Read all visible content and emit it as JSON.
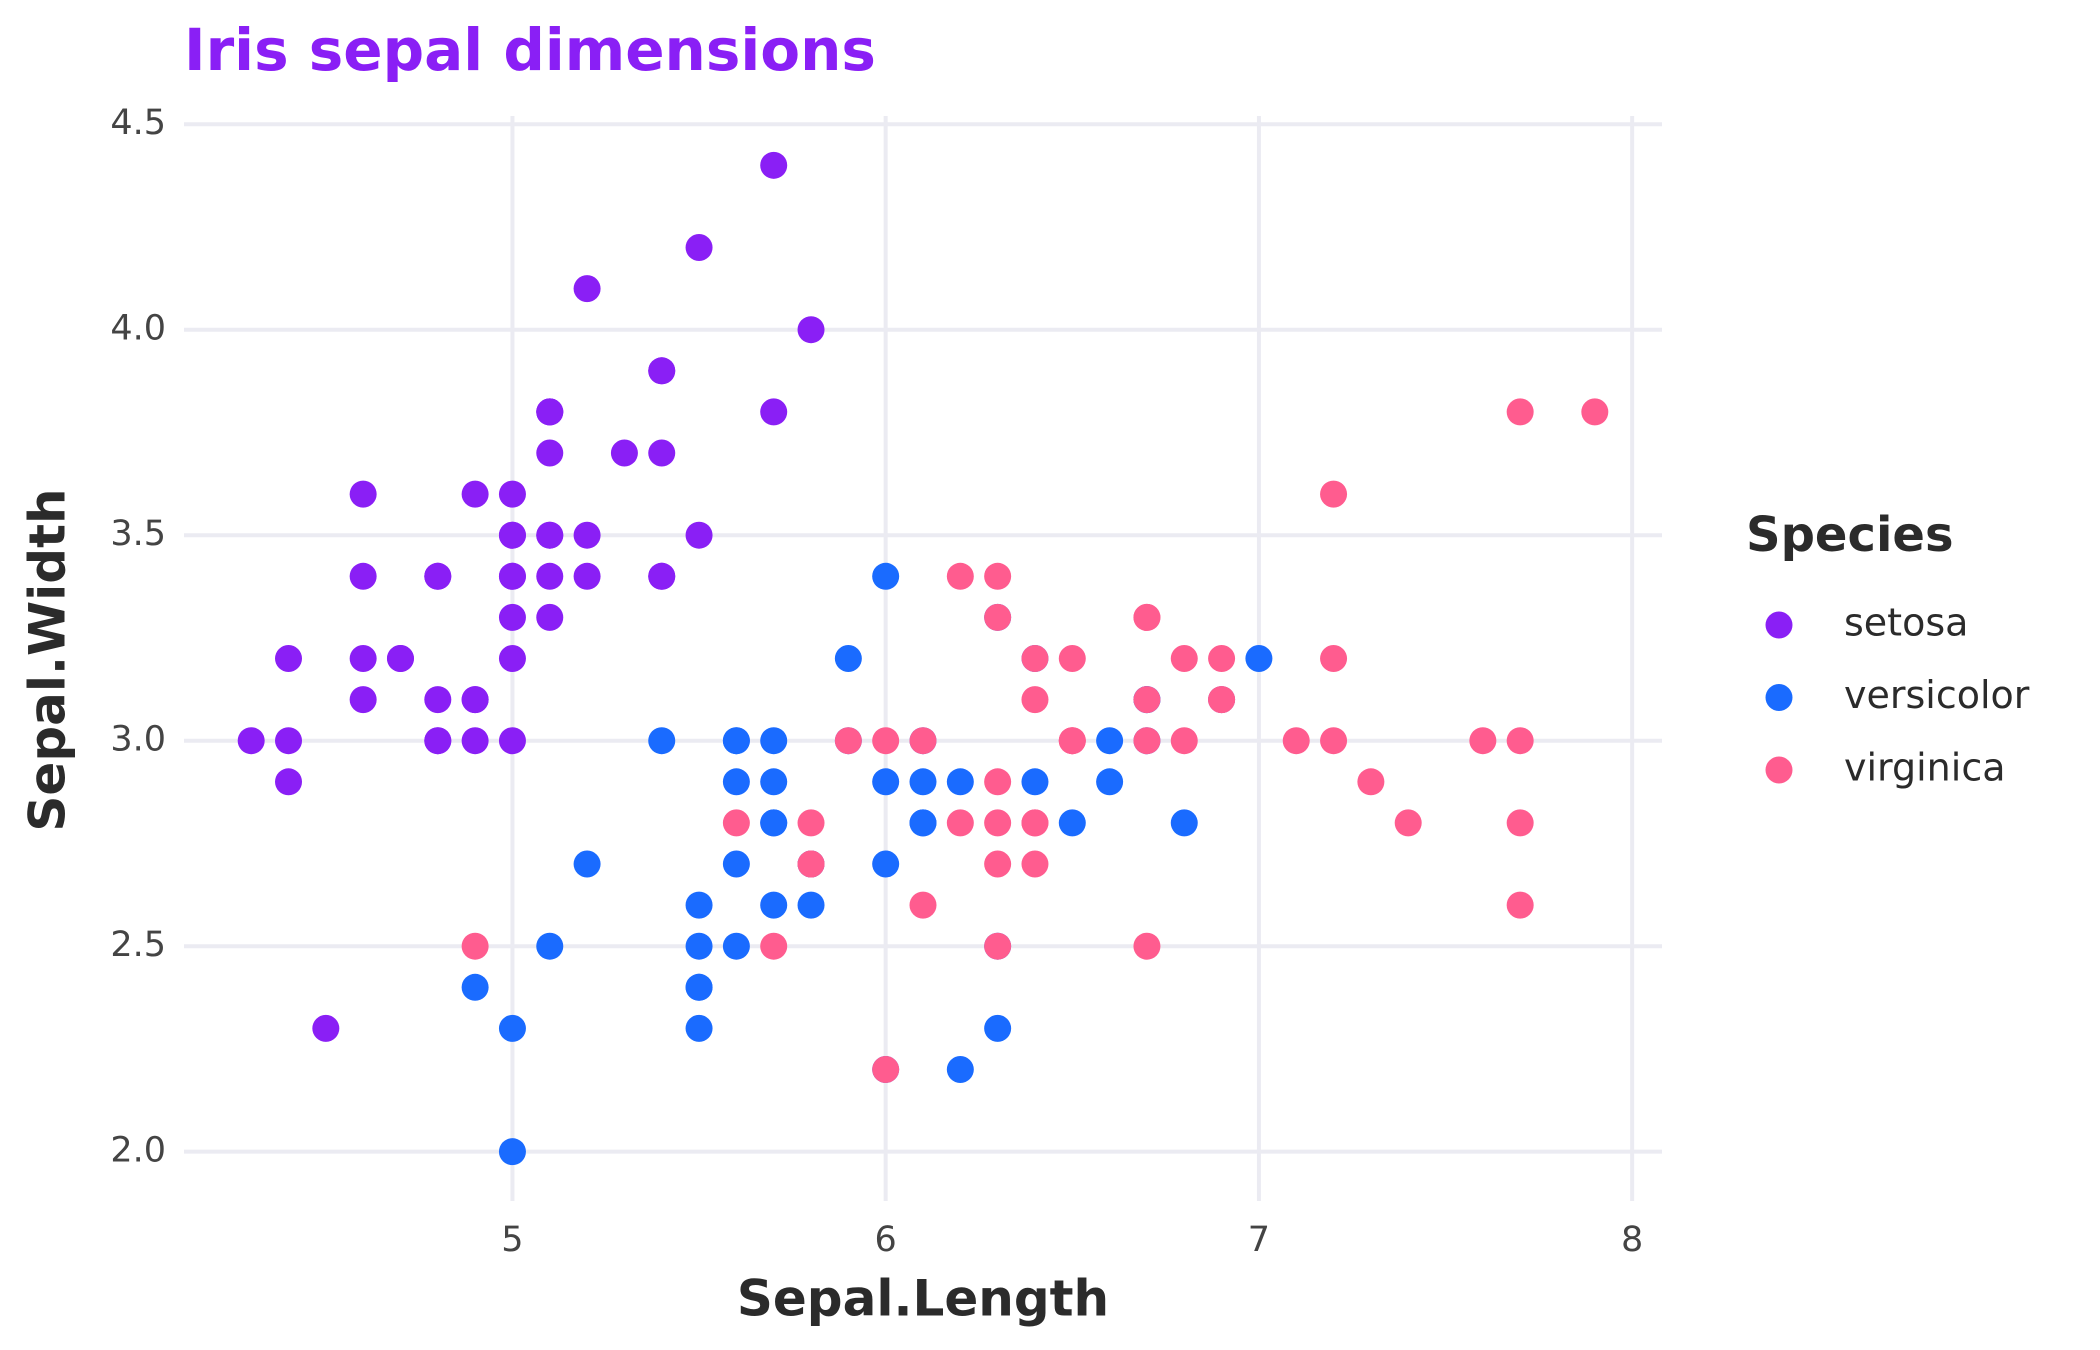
{
  "chart_data": {
    "type": "scatter",
    "title": "Iris sepal dimensions",
    "title_color": "#8a1ff5",
    "x_label": "Sepal.Length",
    "y_label": "Sepal.Width",
    "xlim": [
      4.12,
      8.08
    ],
    "ylim": [
      1.88,
      4.52
    ],
    "xticks": [
      5,
      6,
      7,
      8
    ],
    "yticks": [
      {
        "value": 2,
        "label": "2.0"
      },
      {
        "value": 2.5,
        "label": "2.5"
      },
      {
        "value": 3,
        "label": "3.0"
      },
      {
        "value": 3.5,
        "label": "3.5"
      },
      {
        "value": 4,
        "label": "4.0"
      },
      {
        "value": 4.5,
        "label": "4.5"
      }
    ],
    "grid": true,
    "legend": "right",
    "legend_title": "Species",
    "series": [
      {
        "name": "setosa",
        "color": "#8a1ff5",
        "x": [
          5.1,
          4.9,
          4.7,
          4.6,
          5.0,
          5.4,
          4.6,
          5.0,
          4.4,
          4.9,
          5.4,
          4.8,
          4.8,
          4.3,
          5.8,
          5.7,
          5.4,
          5.1,
          5.7,
          5.1,
          5.4,
          5.1,
          4.6,
          5.1,
          4.8,
          5.0,
          5.0,
          5.2,
          5.2,
          4.7,
          4.8,
          5.4,
          5.2,
          5.5,
          4.9,
          5.0,
          5.5,
          4.9,
          4.4,
          5.1,
          5.0,
          4.5,
          4.4,
          5.0,
          5.1,
          4.8,
          5.1,
          4.6,
          5.3,
          5.0
        ],
        "values": [
          3.5,
          3.0,
          3.2,
          3.1,
          3.6,
          3.9,
          3.4,
          3.4,
          2.9,
          3.1,
          3.7,
          3.4,
          3.0,
          3.0,
          4.0,
          4.4,
          3.9,
          3.5,
          3.8,
          3.8,
          3.4,
          3.7,
          3.6,
          3.3,
          3.4,
          3.0,
          3.4,
          3.5,
          3.4,
          3.2,
          3.1,
          3.4,
          4.1,
          4.2,
          3.1,
          3.2,
          3.5,
          3.6,
          3.0,
          3.4,
          3.5,
          2.3,
          3.2,
          3.5,
          3.8,
          3.0,
          3.8,
          3.2,
          3.7,
          3.3
        ]
      },
      {
        "name": "versicolor",
        "color": "#1a6bff",
        "x": [
          7.0,
          6.4,
          6.9,
          5.5,
          6.5,
          5.7,
          6.3,
          4.9,
          6.6,
          5.2,
          5.0,
          5.9,
          6.0,
          6.1,
          5.6,
          6.7,
          5.6,
          5.8,
          6.2,
          5.6,
          5.9,
          6.1,
          6.3,
          6.1,
          6.4,
          6.6,
          6.8,
          6.7,
          6.0,
          5.7,
          5.5,
          5.5,
          5.8,
          6.0,
          5.4,
          6.0,
          6.7,
          6.3,
          5.6,
          5.5,
          5.5,
          6.1,
          5.8,
          5.0,
          5.6,
          5.7,
          5.7,
          6.2,
          5.1,
          5.7
        ],
        "values": [
          3.2,
          3.2,
          3.1,
          2.3,
          2.8,
          2.8,
          3.3,
          2.4,
          2.9,
          2.7,
          2.0,
          3.0,
          2.2,
          2.9,
          2.9,
          3.1,
          3.0,
          2.7,
          2.2,
          2.5,
          3.2,
          2.8,
          2.5,
          2.8,
          2.9,
          3.0,
          2.8,
          3.0,
          2.9,
          2.6,
          2.4,
          2.4,
          2.7,
          2.7,
          3.0,
          3.4,
          3.1,
          2.3,
          3.0,
          2.5,
          2.6,
          3.0,
          2.6,
          2.3,
          2.7,
          3.0,
          2.9,
          2.9,
          2.5,
          2.8
        ]
      },
      {
        "name": "virginica",
        "color": "#ff5c8f",
        "x": [
          6.3,
          5.8,
          7.1,
          6.3,
          6.5,
          7.6,
          4.9,
          7.3,
          6.7,
          7.2,
          6.5,
          6.4,
          6.8,
          5.7,
          5.8,
          6.4,
          6.5,
          7.7,
          7.7,
          6.0,
          6.9,
          5.6,
          7.7,
          6.3,
          6.7,
          7.2,
          6.2,
          6.1,
          6.4,
          7.2,
          7.4,
          7.9,
          6.4,
          6.3,
          6.1,
          7.7,
          6.3,
          6.4,
          6.0,
          6.9,
          6.7,
          6.9,
          5.8,
          6.8,
          6.7,
          6.7,
          6.3,
          6.5,
          6.2,
          5.9
        ],
        "values": [
          3.3,
          2.7,
          3.0,
          2.9,
          3.0,
          3.0,
          2.5,
          2.9,
          2.5,
          3.6,
          3.2,
          2.7,
          3.0,
          2.5,
          2.8,
          3.2,
          3.0,
          3.8,
          2.6,
          2.2,
          3.2,
          2.8,
          2.8,
          2.7,
          3.3,
          3.2,
          2.8,
          3.0,
          2.8,
          3.0,
          2.8,
          3.8,
          2.8,
          2.8,
          2.6,
          3.0,
          3.4,
          3.1,
          3.0,
          3.1,
          3.1,
          3.1,
          2.7,
          3.2,
          3.3,
          3.0,
          2.5,
          3.0,
          3.4,
          3.0
        ]
      }
    ]
  }
}
